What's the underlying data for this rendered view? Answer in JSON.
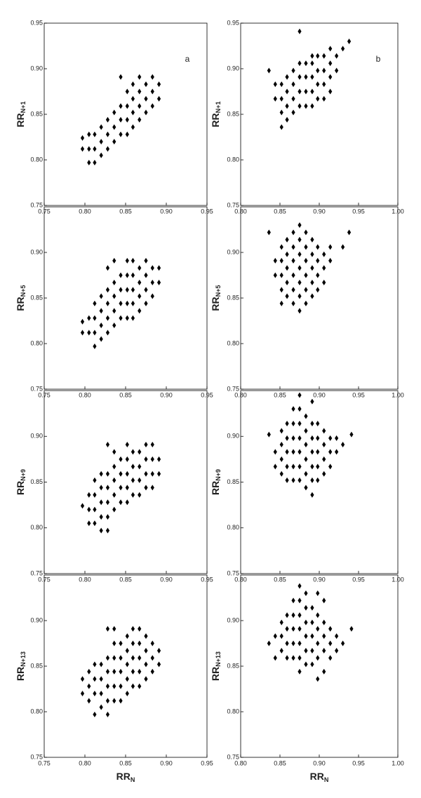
{
  "chart_data": [
    {
      "type": "scatter",
      "annotation": "a",
      "ylabel": "RR",
      "ylabel_sub": "N+1",
      "xlim": [
        0.75,
        0.95
      ],
      "ylim": [
        0.75,
        0.95
      ],
      "xticks": [
        0.75,
        {
          "value": 0.8,
          "label": "0.80"
        },
        0.85,
        {
          "value": 0.9,
          "label": "0.90"
        },
        0.95
      ],
      "yticks": [
        0.75,
        {
          "value": 0.8,
          "label": "0.80"
        },
        0.85,
        {
          "value": 0.9,
          "label": "0.90"
        },
        0.95
      ],
      "color": "#000000",
      "x": [
        0.797,
        0.797,
        0.805,
        0.805,
        0.805,
        0.812,
        0.812,
        0.812,
        0.82,
        0.82,
        0.82,
        0.828,
        0.828,
        0.828,
        0.836,
        0.836,
        0.836,
        0.844,
        0.844,
        0.844,
        0.844,
        0.852,
        0.852,
        0.852,
        0.852,
        0.859,
        0.859,
        0.859,
        0.859,
        0.867,
        0.867,
        0.867,
        0.867,
        0.875,
        0.875,
        0.875,
        0.883,
        0.883,
        0.883,
        0.891,
        0.891
      ],
      "values": [
        0.812,
        0.824,
        0.797,
        0.812,
        0.828,
        0.797,
        0.812,
        0.828,
        0.805,
        0.82,
        0.836,
        0.812,
        0.828,
        0.844,
        0.82,
        0.836,
        0.852,
        0.828,
        0.844,
        0.859,
        0.891,
        0.828,
        0.844,
        0.859,
        0.875,
        0.836,
        0.852,
        0.867,
        0.883,
        0.844,
        0.859,
        0.875,
        0.891,
        0.852,
        0.867,
        0.883,
        0.859,
        0.875,
        0.891,
        0.867,
        0.883
      ]
    },
    {
      "type": "scatter",
      "ylabel": "RR",
      "ylabel_sub": "N+5",
      "xlim": [
        0.75,
        0.95
      ],
      "ylim": [
        0.75,
        0.95
      ],
      "xticks": [
        0.75,
        {
          "value": 0.8,
          "label": "0.80"
        },
        0.85,
        {
          "value": 0.9,
          "label": "0.90"
        },
        0.95
      ],
      "yticks": [
        0.75,
        {
          "value": 0.8,
          "label": "0.80"
        },
        0.85,
        {
          "value": 0.9,
          "label": "0.90"
        }
      ],
      "color": "#000000",
      "x": [
        0.797,
        0.797,
        0.805,
        0.805,
        0.812,
        0.812,
        0.812,
        0.812,
        0.82,
        0.82,
        0.82,
        0.82,
        0.828,
        0.828,
        0.828,
        0.828,
        0.828,
        0.836,
        0.836,
        0.836,
        0.836,
        0.836,
        0.844,
        0.844,
        0.844,
        0.844,
        0.852,
        0.852,
        0.852,
        0.852,
        0.852,
        0.859,
        0.859,
        0.859,
        0.859,
        0.859,
        0.867,
        0.867,
        0.867,
        0.867,
        0.875,
        0.875,
        0.875,
        0.875,
        0.883,
        0.883,
        0.883,
        0.891,
        0.891
      ],
      "values": [
        0.812,
        0.824,
        0.812,
        0.828,
        0.797,
        0.812,
        0.828,
        0.844,
        0.805,
        0.82,
        0.836,
        0.852,
        0.812,
        0.828,
        0.844,
        0.859,
        0.883,
        0.82,
        0.836,
        0.852,
        0.867,
        0.891,
        0.828,
        0.844,
        0.859,
        0.875,
        0.828,
        0.844,
        0.859,
        0.875,
        0.891,
        0.828,
        0.844,
        0.859,
        0.875,
        0.891,
        0.836,
        0.852,
        0.867,
        0.883,
        0.844,
        0.859,
        0.875,
        0.891,
        0.852,
        0.867,
        0.883,
        0.867,
        0.883
      ]
    },
    {
      "type": "scatter",
      "ylabel": "RR",
      "ylabel_sub": "N+9",
      "xlim": [
        0.75,
        0.95
      ],
      "ylim": [
        0.75,
        0.95
      ],
      "xticks": [
        0.75,
        {
          "value": 0.8,
          "label": "0.80"
        },
        0.85,
        {
          "value": 0.9,
          "label": "0.90"
        },
        0.95
      ],
      "yticks": [
        0.75,
        {
          "value": 0.8,
          "label": "0.80"
        },
        0.85,
        {
          "value": 0.9,
          "label": "0.90"
        }
      ],
      "color": "#000000",
      "x": [
        0.797,
        0.805,
        0.805,
        0.805,
        0.812,
        0.812,
        0.812,
        0.812,
        0.82,
        0.82,
        0.82,
        0.82,
        0.82,
        0.828,
        0.828,
        0.828,
        0.828,
        0.828,
        0.828,
        0.836,
        0.836,
        0.836,
        0.836,
        0.836,
        0.844,
        0.844,
        0.844,
        0.844,
        0.852,
        0.852,
        0.852,
        0.852,
        0.852,
        0.859,
        0.859,
        0.859,
        0.859,
        0.867,
        0.867,
        0.867,
        0.867,
        0.875,
        0.875,
        0.875,
        0.875,
        0.883,
        0.883,
        0.883,
        0.883,
        0.891,
        0.891
      ],
      "values": [
        0.824,
        0.805,
        0.82,
        0.836,
        0.805,
        0.82,
        0.836,
        0.852,
        0.797,
        0.812,
        0.828,
        0.844,
        0.859,
        0.797,
        0.812,
        0.828,
        0.844,
        0.859,
        0.891,
        0.82,
        0.836,
        0.852,
        0.867,
        0.883,
        0.828,
        0.844,
        0.859,
        0.875,
        0.828,
        0.844,
        0.859,
        0.875,
        0.891,
        0.836,
        0.852,
        0.867,
        0.883,
        0.836,
        0.852,
        0.867,
        0.883,
        0.844,
        0.859,
        0.875,
        0.891,
        0.844,
        0.859,
        0.875,
        0.891,
        0.859,
        0.875
      ]
    },
    {
      "type": "scatter",
      "ylabel": "RR",
      "ylabel_sub": "N+13",
      "xlabel": "RR",
      "xlabel_sub": "N",
      "xlim": [
        0.75,
        0.95
      ],
      "ylim": [
        0.75,
        0.95
      ],
      "xticks": [
        0.75,
        {
          "value": 0.8,
          "label": "0.80"
        },
        0.85,
        {
          "value": 0.9,
          "label": "0.90"
        },
        0.95
      ],
      "yticks": [
        0.75,
        {
          "value": 0.8,
          "label": "0.80"
        },
        0.85,
        {
          "value": 0.9,
          "label": "0.90"
        }
      ],
      "color": "#000000",
      "x": [
        0.797,
        0.797,
        0.805,
        0.805,
        0.805,
        0.812,
        0.812,
        0.812,
        0.812,
        0.82,
        0.82,
        0.82,
        0.82,
        0.828,
        0.828,
        0.828,
        0.828,
        0.828,
        0.828,
        0.836,
        0.836,
        0.836,
        0.836,
        0.836,
        0.836,
        0.844,
        0.844,
        0.844,
        0.844,
        0.844,
        0.852,
        0.852,
        0.852,
        0.852,
        0.852,
        0.859,
        0.859,
        0.859,
        0.859,
        0.859,
        0.867,
        0.867,
        0.867,
        0.867,
        0.867,
        0.875,
        0.875,
        0.875,
        0.875,
        0.883,
        0.883,
        0.883,
        0.891,
        0.891
      ],
      "values": [
        0.82,
        0.836,
        0.812,
        0.828,
        0.844,
        0.797,
        0.82,
        0.836,
        0.852,
        0.805,
        0.82,
        0.836,
        0.852,
        0.797,
        0.812,
        0.828,
        0.844,
        0.859,
        0.891,
        0.812,
        0.828,
        0.844,
        0.859,
        0.875,
        0.891,
        0.812,
        0.828,
        0.844,
        0.859,
        0.875,
        0.82,
        0.836,
        0.852,
        0.867,
        0.883,
        0.828,
        0.844,
        0.859,
        0.875,
        0.891,
        0.828,
        0.844,
        0.859,
        0.875,
        0.891,
        0.836,
        0.852,
        0.867,
        0.883,
        0.844,
        0.859,
        0.875,
        0.852,
        0.867
      ]
    },
    {
      "type": "scatter",
      "annotation": "b",
      "ylabel": "RR",
      "ylabel_sub": "N+1",
      "xlim": [
        0.8,
        1.0
      ],
      "ylim": [
        0.75,
        0.95
      ],
      "xticks": [
        {
          "value": 0.8,
          "label": "0.80"
        },
        0.85,
        {
          "value": 0.9,
          "label": "0.90"
        },
        0.95,
        {
          "value": 1.0,
          "label": "1.00"
        }
      ],
      "yticks": [
        0.75,
        {
          "value": 0.8,
          "label": "0.80"
        },
        0.85,
        {
          "value": 0.9,
          "label": "0.90"
        },
        0.95
      ],
      "color": "#000000",
      "x": [
        0.836,
        0.844,
        0.844,
        0.852,
        0.852,
        0.852,
        0.852,
        0.859,
        0.859,
        0.859,
        0.859,
        0.867,
        0.867,
        0.867,
        0.867,
        0.875,
        0.875,
        0.875,
        0.875,
        0.875,
        0.883,
        0.883,
        0.883,
        0.883,
        0.891,
        0.891,
        0.891,
        0.891,
        0.891,
        0.898,
        0.898,
        0.898,
        0.898,
        0.906,
        0.906,
        0.906,
        0.906,
        0.914,
        0.914,
        0.914,
        0.914,
        0.922,
        0.922,
        0.93,
        0.938
      ],
      "values": [
        0.898,
        0.867,
        0.883,
        0.836,
        0.852,
        0.867,
        0.883,
        0.844,
        0.859,
        0.875,
        0.891,
        0.852,
        0.867,
        0.883,
        0.898,
        0.859,
        0.875,
        0.891,
        0.906,
        0.941,
        0.859,
        0.875,
        0.891,
        0.906,
        0.859,
        0.875,
        0.891,
        0.906,
        0.914,
        0.867,
        0.883,
        0.898,
        0.914,
        0.867,
        0.883,
        0.898,
        0.914,
        0.875,
        0.891,
        0.906,
        0.922,
        0.898,
        0.914,
        0.922,
        0.93
      ]
    },
    {
      "type": "scatter",
      "ylabel": "RR",
      "ylabel_sub": "N+5",
      "xlim": [
        0.8,
        1.0
      ],
      "ylim": [
        0.75,
        0.95
      ],
      "xticks": [
        {
          "value": 0.8,
          "label": "0.80"
        },
        0.85,
        {
          "value": 0.9,
          "label": "0.90"
        },
        0.95,
        {
          "value": 1.0,
          "label": "1.00"
        }
      ],
      "yticks": [
        0.75,
        {
          "value": 0.8,
          "label": "0.80"
        },
        0.85,
        {
          "value": 0.9,
          "label": "0.90"
        }
      ],
      "color": "#000000",
      "x": [
        0.836,
        0.844,
        0.844,
        0.852,
        0.852,
        0.852,
        0.852,
        0.852,
        0.859,
        0.859,
        0.859,
        0.859,
        0.859,
        0.867,
        0.867,
        0.867,
        0.867,
        0.867,
        0.867,
        0.875,
        0.875,
        0.875,
        0.875,
        0.875,
        0.875,
        0.875,
        0.883,
        0.883,
        0.883,
        0.883,
        0.883,
        0.883,
        0.891,
        0.891,
        0.891,
        0.891,
        0.891,
        0.898,
        0.898,
        0.898,
        0.898,
        0.906,
        0.906,
        0.906,
        0.914,
        0.914,
        0.93,
        0.938
      ],
      "values": [
        0.922,
        0.875,
        0.891,
        0.844,
        0.859,
        0.875,
        0.891,
        0.906,
        0.852,
        0.867,
        0.883,
        0.898,
        0.914,
        0.844,
        0.859,
        0.875,
        0.891,
        0.906,
        0.922,
        0.836,
        0.852,
        0.867,
        0.883,
        0.898,
        0.914,
        0.93,
        0.844,
        0.859,
        0.875,
        0.891,
        0.906,
        0.922,
        0.852,
        0.867,
        0.883,
        0.898,
        0.914,
        0.859,
        0.875,
        0.891,
        0.906,
        0.867,
        0.883,
        0.898,
        0.891,
        0.906,
        0.906,
        0.922
      ]
    },
    {
      "type": "scatter",
      "ylabel": "RR",
      "ylabel_sub": "N+9",
      "xlim": [
        0.8,
        1.0
      ],
      "ylim": [
        0.75,
        0.95
      ],
      "xticks": [
        {
          "value": 0.8,
          "label": "0.80"
        },
        0.85,
        {
          "value": 0.9,
          "label": "0.90"
        },
        0.95,
        {
          "value": 1.0,
          "label": "1.00"
        }
      ],
      "yticks": [
        0.75,
        {
          "value": 0.8,
          "label": "0.80"
        },
        0.85,
        {
          "value": 0.9,
          "label": "0.90"
        }
      ],
      "color": "#000000",
      "x": [
        0.836,
        0.844,
        0.844,
        0.852,
        0.852,
        0.852,
        0.852,
        0.859,
        0.859,
        0.859,
        0.859,
        0.859,
        0.867,
        0.867,
        0.867,
        0.867,
        0.867,
        0.867,
        0.875,
        0.875,
        0.875,
        0.875,
        0.875,
        0.875,
        0.875,
        0.883,
        0.883,
        0.883,
        0.883,
        0.883,
        0.883,
        0.891,
        0.891,
        0.891,
        0.891,
        0.891,
        0.891,
        0.891,
        0.898,
        0.898,
        0.898,
        0.898,
        0.898,
        0.906,
        0.906,
        0.906,
        0.906,
        0.914,
        0.914,
        0.914,
        0.922,
        0.922,
        0.93,
        0.941
      ],
      "values": [
        0.902,
        0.867,
        0.883,
        0.859,
        0.875,
        0.891,
        0.906,
        0.852,
        0.867,
        0.883,
        0.898,
        0.914,
        0.852,
        0.867,
        0.883,
        0.898,
        0.914,
        0.93,
        0.852,
        0.867,
        0.883,
        0.898,
        0.914,
        0.93,
        0.945,
        0.844,
        0.859,
        0.875,
        0.891,
        0.906,
        0.922,
        0.836,
        0.852,
        0.867,
        0.883,
        0.898,
        0.914,
        0.938,
        0.852,
        0.867,
        0.883,
        0.898,
        0.914,
        0.859,
        0.875,
        0.891,
        0.906,
        0.867,
        0.883,
        0.898,
        0.883,
        0.898,
        0.891,
        0.902
      ]
    },
    {
      "type": "scatter",
      "ylabel": "RR",
      "ylabel_sub": "N+13",
      "xlabel": "RR",
      "xlabel_sub": "N",
      "xlim": [
        0.8,
        1.0
      ],
      "ylim": [
        0.75,
        0.95
      ],
      "xticks": [
        {
          "value": 0.8,
          "label": "0.80"
        },
        0.85,
        {
          "value": 0.9,
          "label": "0.90"
        },
        0.95,
        {
          "value": 1.0,
          "label": "1.00"
        }
      ],
      "yticks": [
        0.75,
        {
          "value": 0.8,
          "label": "0.80"
        },
        0.85,
        {
          "value": 0.9,
          "label": "0.90"
        }
      ],
      "color": "#000000",
      "x": [
        0.836,
        0.844,
        0.844,
        0.852,
        0.852,
        0.852,
        0.859,
        0.859,
        0.859,
        0.859,
        0.867,
        0.867,
        0.867,
        0.867,
        0.867,
        0.875,
        0.875,
        0.875,
        0.875,
        0.875,
        0.875,
        0.875,
        0.883,
        0.883,
        0.883,
        0.883,
        0.883,
        0.883,
        0.891,
        0.891,
        0.891,
        0.891,
        0.891,
        0.898,
        0.898,
        0.898,
        0.898,
        0.898,
        0.898,
        0.906,
        0.906,
        0.906,
        0.906,
        0.906,
        0.914,
        0.914,
        0.914,
        0.922,
        0.922,
        0.93,
        0.941
      ],
      "values": [
        0.875,
        0.859,
        0.883,
        0.867,
        0.883,
        0.898,
        0.859,
        0.875,
        0.891,
        0.906,
        0.859,
        0.875,
        0.891,
        0.906,
        0.922,
        0.844,
        0.859,
        0.875,
        0.891,
        0.906,
        0.922,
        0.938,
        0.852,
        0.867,
        0.883,
        0.898,
        0.914,
        0.93,
        0.852,
        0.867,
        0.883,
        0.898,
        0.914,
        0.836,
        0.859,
        0.875,
        0.891,
        0.906,
        0.93,
        0.844,
        0.867,
        0.883,
        0.898,
        0.922,
        0.859,
        0.875,
        0.891,
        0.867,
        0.883,
        0.875,
        0.891
      ]
    }
  ]
}
